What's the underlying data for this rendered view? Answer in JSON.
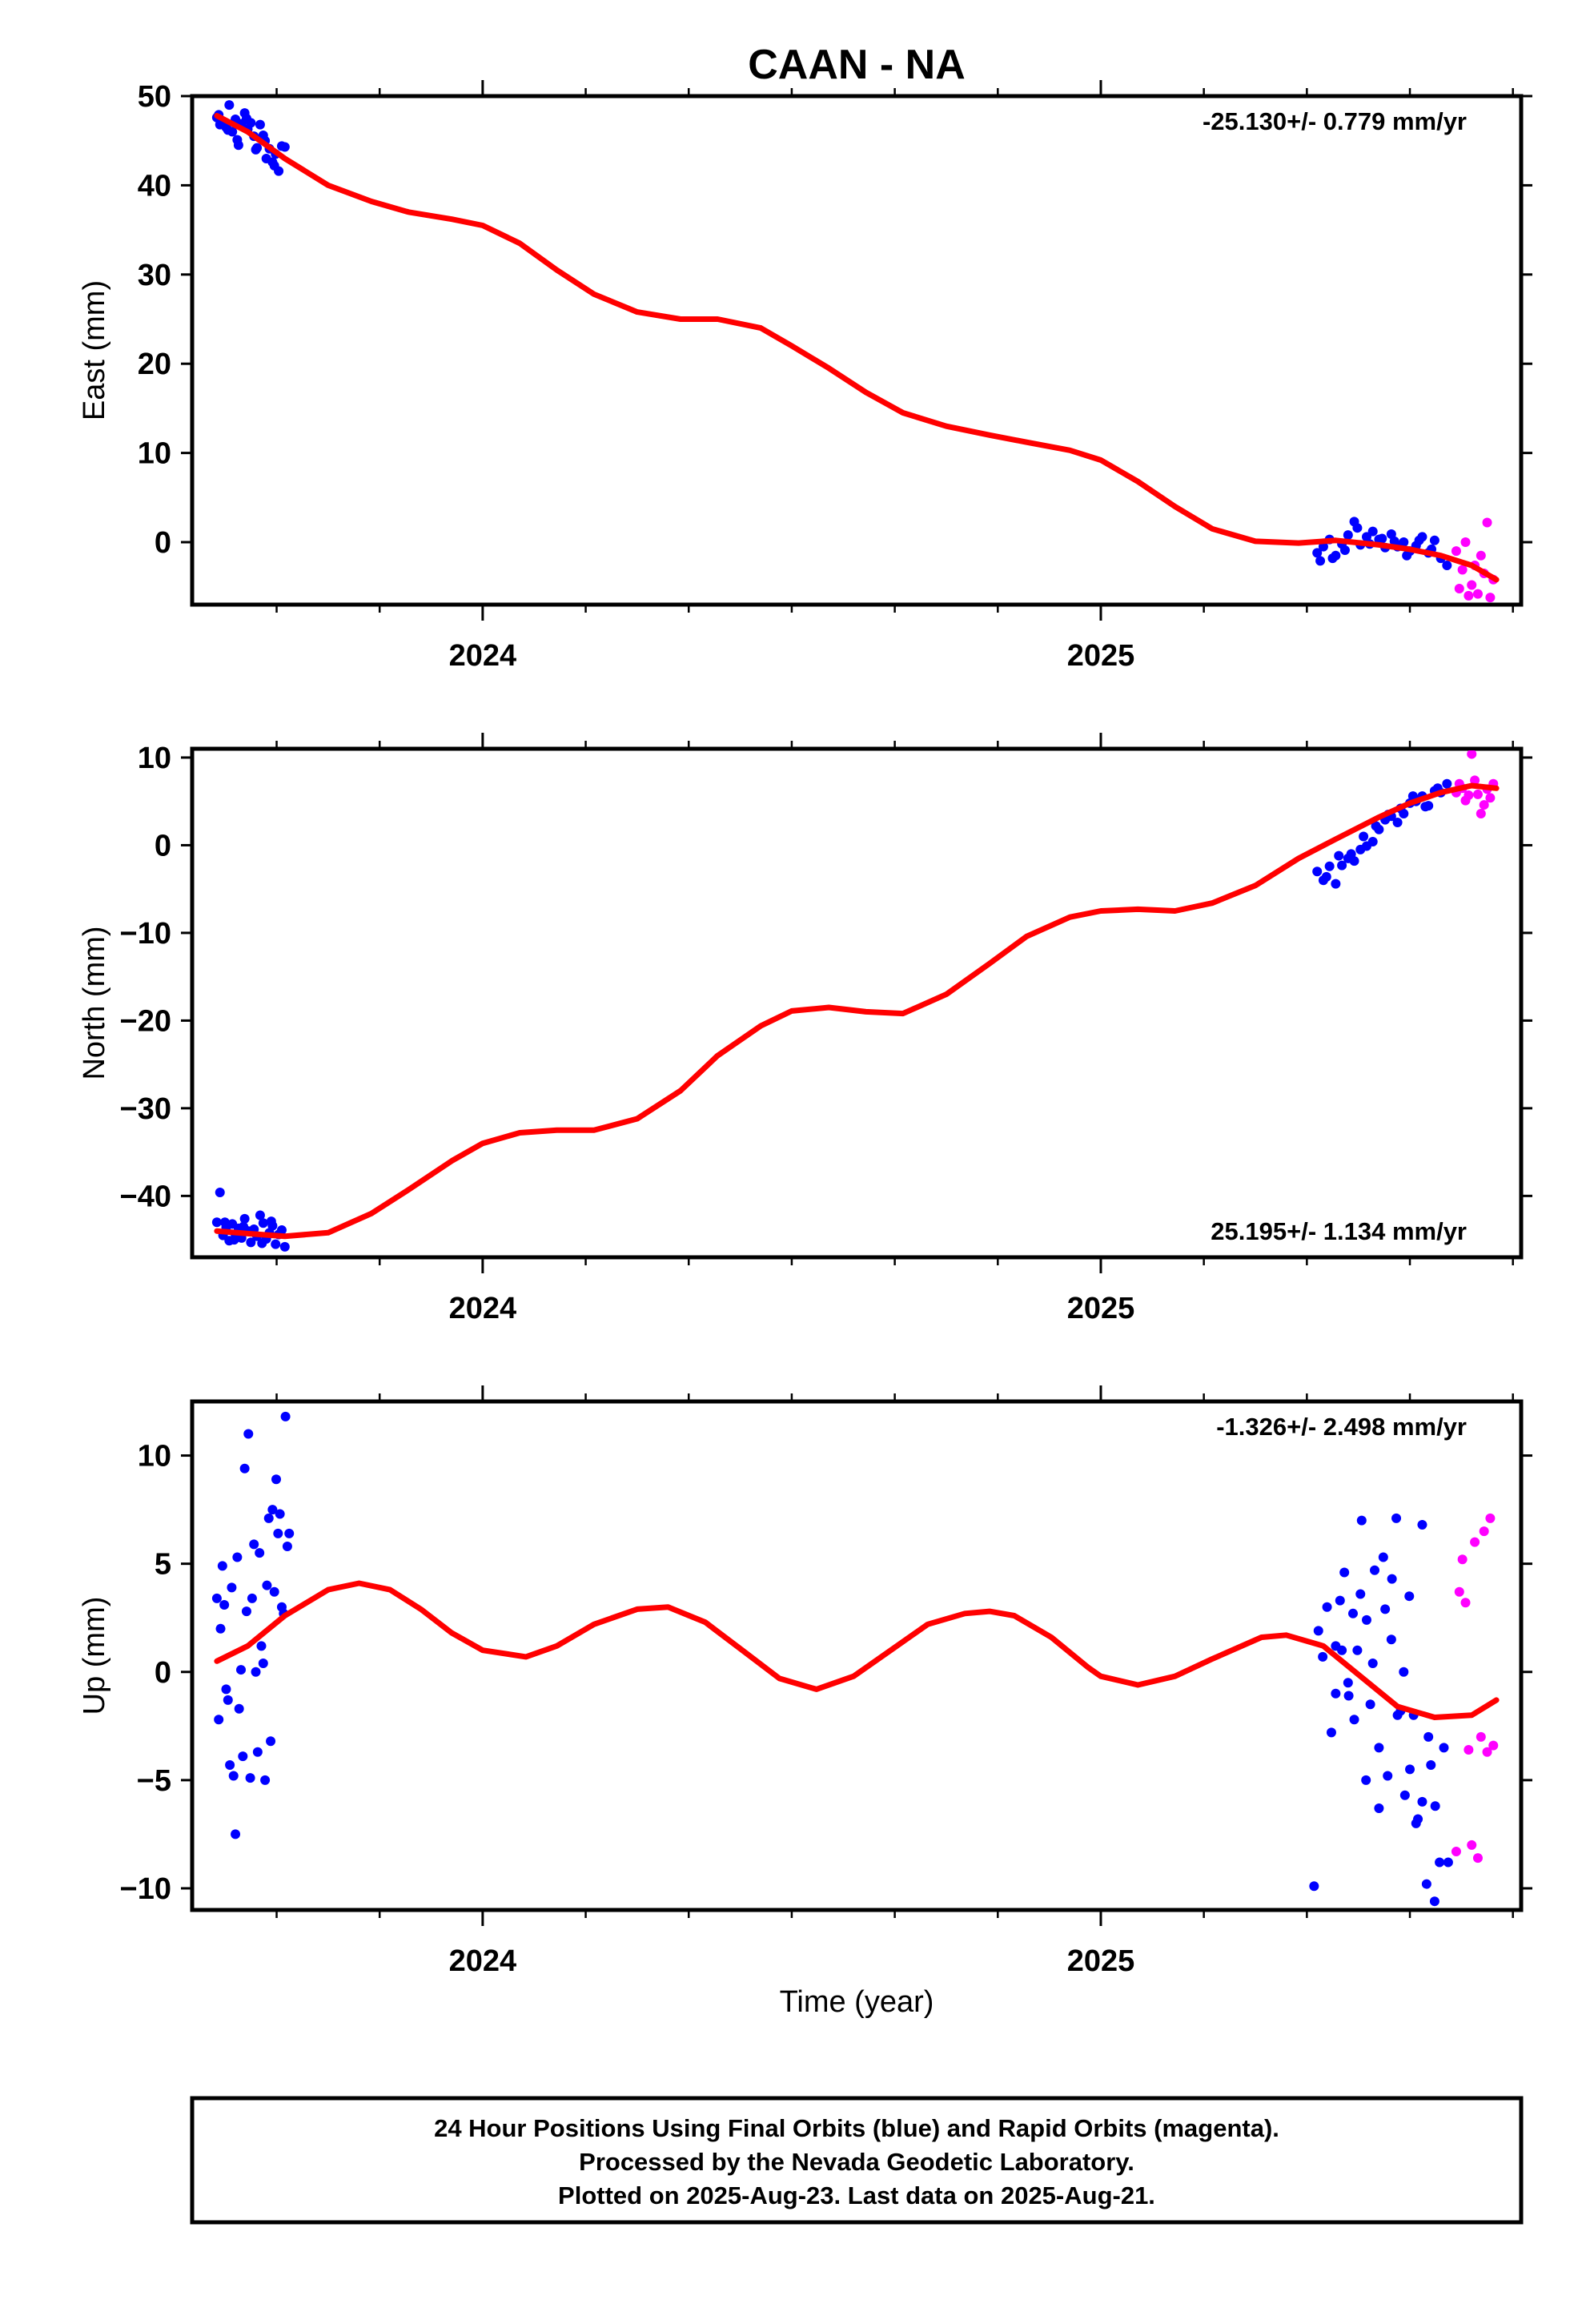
{
  "title": "CAAN - NA",
  "xlabel": "Time (year)",
  "footer": {
    "lines": [
      "24 Hour Positions Using Final Orbits (blue) and Rapid Orbits (magenta).",
      "Processed by the Nevada Geodetic Laboratory.",
      "Plotted on 2025-Aug-23. Last data on 2025-Aug-21."
    ]
  },
  "colors": {
    "final": "#0000ff",
    "rapid": "#ff00ff",
    "model": "#ff0000",
    "frame": "#000000"
  },
  "chart_data": [
    {
      "type": "scatter",
      "ylabel": "East (mm)",
      "rate": "-25.130+/- 0.779 mm/yr",
      "rate_position": "top-right",
      "ylim": [
        -7,
        50
      ],
      "yticks": [
        0,
        10,
        20,
        30,
        40,
        50
      ],
      "xlim": [
        2023.53,
        2025.68
      ],
      "xticks": [
        {
          "v": 2024,
          "label": "2024"
        },
        {
          "v": 2025,
          "label": "2025"
        }
      ],
      "model": {
        "name": "",
        "x": [
          2023.57,
          2023.62,
          2023.68,
          2023.75,
          2023.82,
          2023.88,
          2023.95,
          2024.0,
          2024.06,
          2024.12,
          2024.18,
          2024.25,
          2024.32,
          2024.38,
          2024.45,
          2024.5,
          2024.56,
          2024.62,
          2024.68,
          2024.75,
          2024.82,
          2024.88,
          2024.95,
          2025.0,
          2025.06,
          2025.12,
          2025.18,
          2025.25,
          2025.32,
          2025.38,
          2025.45,
          2025.5,
          2025.55,
          2025.6,
          2025.64
        ],
        "y": [
          47.8,
          46.0,
          43.0,
          40.0,
          38.2,
          37.0,
          36.2,
          35.5,
          33.5,
          30.5,
          27.8,
          25.8,
          25.0,
          25.0,
          24.0,
          22.0,
          19.5,
          16.8,
          14.5,
          13.0,
          12.0,
          11.2,
          10.3,
          9.2,
          6.8,
          4.0,
          1.5,
          0.1,
          -0.1,
          0.2,
          -0.3,
          -0.8,
          -1.5,
          -2.6,
          -4.2
        ]
      },
      "final": {
        "x": [
          2023.57,
          2023.575,
          2023.58,
          2023.585,
          2023.59,
          2023.595,
          2023.6,
          2023.605,
          2023.61,
          2023.615,
          2023.62,
          2023.625,
          2023.63,
          2023.635,
          2023.64,
          2023.645,
          2023.65,
          2023.655,
          2023.66,
          2023.665,
          2023.67,
          2023.675,
          2023.68,
          2023.573,
          2023.588,
          2023.603,
          2023.618,
          2023.633,
          2023.648,
          2023.663,
          2025.35,
          2025.36,
          2025.37,
          2025.38,
          2025.39,
          2025.4,
          2025.41,
          2025.42,
          2025.43,
          2025.44,
          2025.45,
          2025.46,
          2025.47,
          2025.48,
          2025.49,
          2025.5,
          2025.51,
          2025.52,
          2025.53,
          2025.54,
          2025.55,
          2025.56,
          2025.355,
          2025.375,
          2025.395,
          2025.415,
          2025.435,
          2025.455,
          2025.475,
          2025.495,
          2025.515,
          2025.535
        ],
        "y": [
          47.6,
          46.8,
          47.1,
          46.5,
          49.0,
          46.0,
          47.4,
          44.5,
          46.9,
          48.1,
          46.3,
          47.0,
          45.5,
          44.2,
          46.8,
          45.6,
          43.0,
          44.1,
          42.6,
          43.5,
          41.6,
          44.4,
          44.3,
          47.9,
          46.2,
          45.1,
          47.5,
          44.0,
          45.0,
          42.2,
          -1.2,
          -0.5,
          0.3,
          -1.5,
          -0.2,
          0.8,
          2.3,
          -0.3,
          0.6,
          1.2,
          0.3,
          -0.6,
          0.9,
          -0.5,
          0.0,
          -1.0,
          -0.4,
          0.6,
          -1.2,
          0.2,
          -1.8,
          -2.6,
          -2.1,
          -1.8,
          -0.9,
          1.6,
          -0.2,
          0.4,
          0.1,
          -1.5,
          0.2,
          -0.8
        ]
      },
      "rapid": {
        "x": [
          2025.575,
          2025.58,
          2025.585,
          2025.59,
          2025.595,
          2025.6,
          2025.605,
          2025.61,
          2025.615,
          2025.62,
          2025.625,
          2025.63,
          2025.635
        ],
        "y": [
          -1.0,
          -5.2,
          -3.1,
          0.0,
          -6.0,
          -4.8,
          -2.6,
          -5.8,
          -1.5,
          -3.5,
          2.2,
          -6.2,
          -4.2
        ]
      }
    },
    {
      "type": "scatter",
      "ylabel": "North (mm)",
      "rate": "25.195+/- 1.134 mm/yr",
      "rate_position": "bottom-right",
      "ylim": [
        -47,
        11
      ],
      "yticks": [
        -40,
        -30,
        -20,
        -10,
        0,
        10
      ],
      "xlim": [
        2023.53,
        2025.68
      ],
      "xticks": [
        {
          "v": 2024,
          "label": "2024"
        },
        {
          "v": 2025,
          "label": "2025"
        }
      ],
      "model": {
        "name": "",
        "x": [
          2023.57,
          2023.62,
          2023.68,
          2023.75,
          2023.82,
          2023.88,
          2023.95,
          2024.0,
          2024.06,
          2024.12,
          2024.18,
          2024.25,
          2024.32,
          2024.38,
          2024.45,
          2024.5,
          2024.56,
          2024.62,
          2024.68,
          2024.75,
          2024.82,
          2024.88,
          2024.95,
          2025.0,
          2025.06,
          2025.12,
          2025.18,
          2025.25,
          2025.32,
          2025.38,
          2025.45,
          2025.5,
          2025.55,
          2025.6,
          2025.64
        ],
        "y": [
          -44.0,
          -44.3,
          -44.6,
          -44.2,
          -42.0,
          -39.3,
          -36.0,
          -34.0,
          -32.8,
          -32.5,
          -32.5,
          -31.2,
          -28.0,
          -24.0,
          -20.6,
          -18.9,
          -18.5,
          -19.0,
          -19.2,
          -17.0,
          -13.5,
          -10.4,
          -8.2,
          -7.5,
          -7.3,
          -7.5,
          -6.6,
          -4.6,
          -1.5,
          0.7,
          3.2,
          4.8,
          6.0,
          6.8,
          6.5
        ]
      },
      "final": {
        "x": [
          2023.57,
          2023.575,
          2023.58,
          2023.585,
          2023.59,
          2023.595,
          2023.6,
          2023.605,
          2023.61,
          2023.615,
          2023.62,
          2023.625,
          2023.63,
          2023.635,
          2023.64,
          2023.645,
          2023.65,
          2023.655,
          2023.66,
          2023.665,
          2023.67,
          2023.675,
          2023.68,
          2023.583,
          2023.598,
          2023.613,
          2023.628,
          2023.643,
          2023.658,
          2025.35,
          2025.36,
          2025.37,
          2025.38,
          2025.39,
          2025.4,
          2025.41,
          2025.42,
          2025.43,
          2025.44,
          2025.45,
          2025.46,
          2025.47,
          2025.48,
          2025.49,
          2025.5,
          2025.51,
          2025.52,
          2025.53,
          2025.54,
          2025.55,
          2025.56,
          2025.365,
          2025.385,
          2025.405,
          2025.425,
          2025.445,
          2025.465,
          2025.485,
          2025.505,
          2025.525,
          2025.545
        ],
        "y": [
          -43.0,
          -39.6,
          -44.5,
          -43.6,
          -45.1,
          -43.2,
          -44.4,
          -43.7,
          -44.8,
          -42.6,
          -44.0,
          -45.3,
          -43.8,
          -44.6,
          -42.2,
          -43.1,
          -44.9,
          -44.2,
          -43.4,
          -45.5,
          -44.4,
          -43.9,
          -45.8,
          -43.0,
          -45.0,
          -43.5,
          -44.1,
          -45.4,
          -42.9,
          -3.0,
          -4.0,
          -2.4,
          -4.4,
          -2.3,
          -1.5,
          -1.8,
          -0.5,
          -0.1,
          0.4,
          1.8,
          2.9,
          3.3,
          2.6,
          3.6,
          4.8,
          5.0,
          5.6,
          4.5,
          6.2,
          6.0,
          7.0,
          -3.6,
          -1.2,
          -1.0,
          1.0,
          2.2,
          3.5,
          4.2,
          5.6,
          4.4,
          6.5
        ]
      },
      "rapid": {
        "x": [
          2025.575,
          2025.58,
          2025.585,
          2025.59,
          2025.595,
          2025.6,
          2025.605,
          2025.61,
          2025.615,
          2025.62,
          2025.625,
          2025.63,
          2025.635
        ],
        "y": [
          6.0,
          7.0,
          6.5,
          5.1,
          5.7,
          10.4,
          7.4,
          5.8,
          3.6,
          4.6,
          6.4,
          5.4,
          7.0
        ]
      }
    },
    {
      "type": "scatter",
      "ylabel": "Up (mm)",
      "rate": "-1.326+/- 2.498 mm/yr",
      "rate_position": "top-right",
      "ylim": [
        -11,
        12.5
      ],
      "yticks": [
        -10,
        -5,
        0,
        5,
        10
      ],
      "xlim": [
        2023.53,
        2025.68
      ],
      "xticks": [
        {
          "v": 2024,
          "label": "2024"
        },
        {
          "v": 2025,
          "label": "2025"
        }
      ],
      "model": {
        "name": "",
        "x": [
          2023.57,
          2023.62,
          2023.68,
          2023.75,
          2023.8,
          2023.85,
          2023.9,
          2023.95,
          2024.0,
          2024.07,
          2024.12,
          2024.18,
          2024.25,
          2024.3,
          2024.36,
          2024.42,
          2024.48,
          2024.54,
          2024.6,
          2024.66,
          2024.72,
          2024.78,
          2024.82,
          2024.86,
          2024.92,
          2024.98,
          2025.0,
          2025.06,
          2025.12,
          2025.18,
          2025.26,
          2025.3,
          2025.36,
          2025.42,
          2025.48,
          2025.54,
          2025.6,
          2025.64
        ],
        "y": [
          0.5,
          1.2,
          2.6,
          3.8,
          4.1,
          3.8,
          2.9,
          1.8,
          1.0,
          0.7,
          1.2,
          2.2,
          2.9,
          3.0,
          2.3,
          1.0,
          -0.3,
          -0.8,
          -0.2,
          1.0,
          2.2,
          2.7,
          2.8,
          2.6,
          1.6,
          0.2,
          -0.2,
          -0.6,
          -0.2,
          0.6,
          1.6,
          1.7,
          1.2,
          -0.2,
          -1.6,
          -2.1,
          -2.0,
          -1.3
        ]
      },
      "final": {
        "x": [
          2023.57,
          2023.573,
          2023.576,
          2023.579,
          2023.582,
          2023.585,
          2023.588,
          2023.591,
          2023.594,
          2023.597,
          2023.6,
          2023.603,
          2023.606,
          2023.609,
          2023.612,
          2023.615,
          2023.618,
          2023.621,
          2023.624,
          2023.627,
          2023.63,
          2023.633,
          2023.636,
          2023.639,
          2023.642,
          2023.645,
          2023.648,
          2023.651,
          2023.654,
          2023.657,
          2023.66,
          2023.663,
          2023.666,
          2023.669,
          2023.672,
          2023.675,
          2023.678,
          2023.681,
          2023.684,
          2023.687,
          2025.345,
          2025.352,
          2025.359,
          2025.366,
          2025.373,
          2025.38,
          2025.387,
          2025.394,
          2025.401,
          2025.408,
          2025.415,
          2025.422,
          2025.429,
          2025.436,
          2025.443,
          2025.45,
          2025.457,
          2025.464,
          2025.471,
          2025.478,
          2025.485,
          2025.492,
          2025.499,
          2025.506,
          2025.513,
          2025.52,
          2025.527,
          2025.534,
          2025.541,
          2025.548,
          2025.555,
          2025.562,
          2025.38,
          2025.39,
          2025.4,
          2025.41,
          2025.42,
          2025.43,
          2025.44,
          2025.45,
          2025.46,
          2025.47,
          2025.48,
          2025.49,
          2025.5,
          2025.51,
          2025.52,
          2025.53,
          2025.54
        ],
        "y": [
          3.4,
          -2.2,
          2.0,
          4.9,
          3.1,
          -0.8,
          -1.3,
          -4.3,
          3.9,
          -4.8,
          -7.5,
          5.3,
          -1.7,
          0.1,
          -3.9,
          9.4,
          2.8,
          11.0,
          -4.9,
          3.4,
          5.9,
          0.0,
          -3.7,
          5.5,
          1.2,
          0.4,
          -5.0,
          4.0,
          7.1,
          -3.2,
          7.5,
          3.7,
          8.9,
          6.4,
          7.3,
          3.0,
          2.7,
          11.8,
          5.8,
          6.4,
          -9.9,
          1.9,
          0.7,
          3.0,
          -2.8,
          1.2,
          3.3,
          4.6,
          -1.1,
          2.7,
          1.0,
          7.0,
          -5.0,
          -1.5,
          4.7,
          -6.3,
          5.3,
          -4.8,
          4.3,
          7.1,
          -1.8,
          -5.7,
          3.5,
          -2.0,
          -6.8,
          6.8,
          -9.8,
          -4.3,
          -6.2,
          -8.8,
          -3.5,
          -8.8,
          -1.0,
          1.0,
          -0.5,
          -2.2,
          3.6,
          2.4,
          0.4,
          -3.5,
          2.9,
          1.5,
          -2.0,
          0.0,
          -4.5,
          -7.0,
          -6.0,
          -3.0,
          -10.6
        ]
      },
      "rapid": {
        "x": [
          2025.575,
          2025.58,
          2025.585,
          2025.59,
          2025.595,
          2025.6,
          2025.605,
          2025.61,
          2025.615,
          2025.62,
          2025.625,
          2025.63,
          2025.635
        ],
        "y": [
          -8.3,
          3.7,
          5.2,
          3.2,
          -3.6,
          -8.0,
          6.0,
          -8.6,
          -3.0,
          6.5,
          -3.7,
          7.1,
          -3.4
        ]
      }
    }
  ]
}
